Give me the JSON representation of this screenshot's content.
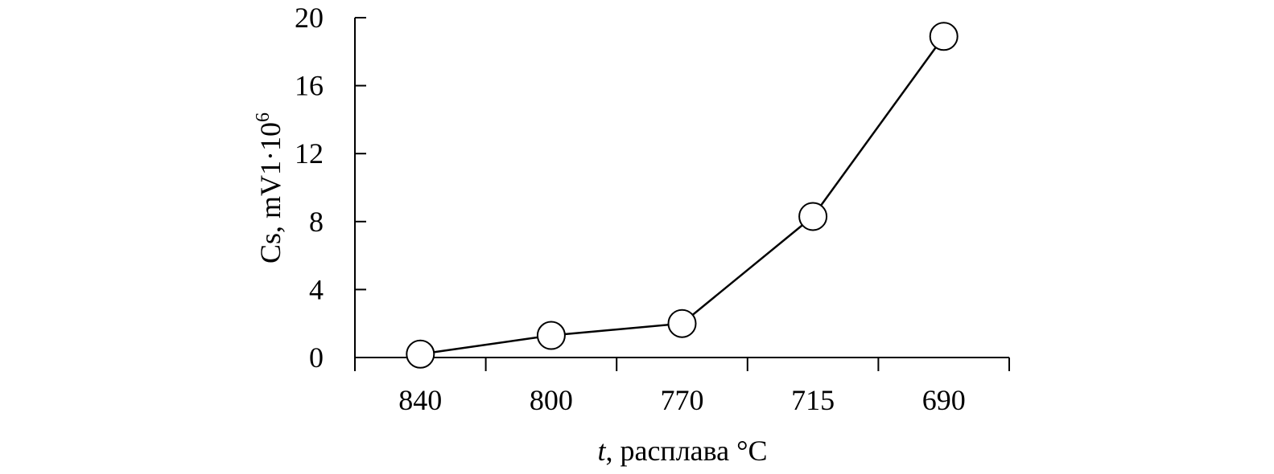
{
  "chart_data": {
    "type": "line",
    "title": "",
    "xlabel_var": "t",
    "xlabel_rest": ", расплава °C",
    "ylabel": "Cs, mV1·10",
    "ylabel_sup": "6",
    "categories": [
      "840",
      "800",
      "770",
      "715",
      "690"
    ],
    "series": [
      {
        "name": "Cs",
        "values": [
          0.2,
          1.3,
          2.0,
          8.3,
          18.9
        ]
      }
    ],
    "ylim": [
      0,
      20
    ],
    "yticks": [
      "0",
      "4",
      "8",
      "12",
      "16",
      "20"
    ],
    "grid": false,
    "marker": "open-circle",
    "color": "#000000"
  }
}
